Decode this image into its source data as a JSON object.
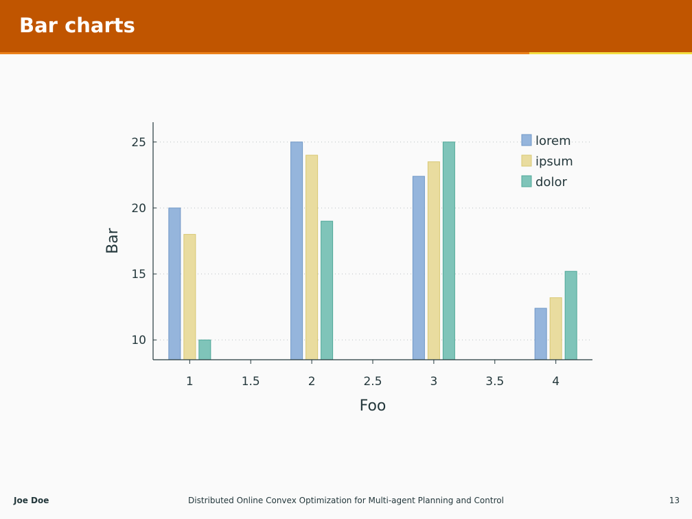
{
  "slide": {
    "title": "Bar charts"
  },
  "progress": {
    "fraction": 0.765
  },
  "footer": {
    "author": "Joe Doe",
    "title": "Distributed Online Convex Optimization for Multi-agent Planning and Control",
    "page": "13"
  },
  "chart_data": {
    "type": "bar",
    "xlabel": "Foo",
    "ylabel": "Bar",
    "x": [
      1,
      2,
      3,
      4
    ],
    "xticks": [
      1,
      1.5,
      2,
      2.5,
      3,
      3.5,
      4
    ],
    "xtick_labels": [
      "1",
      "1.5",
      "2",
      "2.5",
      "3",
      "3.5",
      "4"
    ],
    "yticks": [
      10,
      15,
      20,
      25
    ],
    "ytick_labels": [
      "10",
      "15",
      "20",
      "25"
    ],
    "xlim": [
      0.7,
      4.3
    ],
    "ylim": [
      8.5,
      26.5
    ],
    "grid": "horizontal dotted",
    "legend": "top-right",
    "series": [
      {
        "name": "lorem",
        "values": [
          20,
          25,
          22.4,
          12.4
        ],
        "fill": "#95b5dc",
        "stroke": "#6f97c6"
      },
      {
        "name": "ipsum",
        "values": [
          18,
          24,
          23.5,
          13.2
        ],
        "fill": "#e9dc9f",
        "stroke": "#d8c873"
      },
      {
        "name": "dolor",
        "values": [
          10,
          19,
          25,
          15.2
        ],
        "fill": "#7fc4b9",
        "stroke": "#4fa898"
      }
    ]
  }
}
